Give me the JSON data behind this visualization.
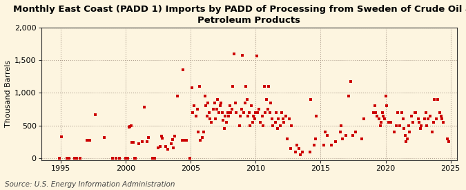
{
  "title": "Monthly East Coast (PADD 1) Imports by PADD of Processing from Sweden of Crude Oil and\nPetroleum Products",
  "ylabel": "Thousand Barrels",
  "source": "Source: U.S. Energy Information Administration",
  "background_color": "#fdf5e0",
  "plot_bg_color": "#fdf5e0",
  "marker_color": "#cc0000",
  "xlim": [
    1993.5,
    2025.5
  ],
  "ylim": [
    -30,
    2000
  ],
  "yticks": [
    0,
    500,
    1000,
    1500,
    2000
  ],
  "xticks": [
    1995,
    2000,
    2005,
    2010,
    2015,
    2020,
    2025
  ],
  "title_fontsize": 9.5,
  "ylabel_fontsize": 8,
  "source_fontsize": 7.5,
  "data_points": [
    [
      1994.917,
      0
    ],
    [
      1995.083,
      325
    ],
    [
      1995.5,
      0
    ],
    [
      1995.667,
      0
    ],
    [
      1996.083,
      0
    ],
    [
      1996.25,
      0
    ],
    [
      1996.5,
      0
    ],
    [
      1997.0,
      280
    ],
    [
      1997.25,
      280
    ],
    [
      1997.667,
      670
    ],
    [
      1998.333,
      320
    ],
    [
      1999.0,
      0
    ],
    [
      1999.25,
      0
    ],
    [
      1999.5,
      0
    ],
    [
      2000.0,
      0
    ],
    [
      2000.083,
      0
    ],
    [
      2000.167,
      0
    ],
    [
      2000.25,
      480
    ],
    [
      2000.333,
      490
    ],
    [
      2000.417,
      500
    ],
    [
      2000.5,
      240
    ],
    [
      2000.583,
      240
    ],
    [
      2000.667,
      0
    ],
    [
      2000.75,
      0
    ],
    [
      2001.0,
      220
    ],
    [
      2001.25,
      250
    ],
    [
      2001.417,
      780
    ],
    [
      2001.667,
      250
    ],
    [
      2001.75,
      320
    ],
    [
      2002.083,
      0
    ],
    [
      2002.25,
      0
    ],
    [
      2002.5,
      160
    ],
    [
      2002.667,
      180
    ],
    [
      2002.75,
      340
    ],
    [
      2002.833,
      310
    ],
    [
      2003.083,
      180
    ],
    [
      2003.25,
      140
    ],
    [
      2003.5,
      220
    ],
    [
      2003.583,
      290
    ],
    [
      2003.667,
      160
    ],
    [
      2003.75,
      340
    ],
    [
      2004.0,
      950
    ],
    [
      2004.333,
      280
    ],
    [
      2004.417,
      1350
    ],
    [
      2004.583,
      280
    ],
    [
      2004.667,
      280
    ],
    [
      2004.917,
      0
    ],
    [
      2005.083,
      1080
    ],
    [
      2005.167,
      700
    ],
    [
      2005.25,
      800
    ],
    [
      2005.417,
      650
    ],
    [
      2005.5,
      750
    ],
    [
      2005.583,
      400
    ],
    [
      2005.667,
      1100
    ],
    [
      2005.75,
      280
    ],
    [
      2005.917,
      320
    ],
    [
      2006.0,
      400
    ],
    [
      2006.083,
      950
    ],
    [
      2006.167,
      800
    ],
    [
      2006.25,
      650
    ],
    [
      2006.333,
      850
    ],
    [
      2006.417,
      700
    ],
    [
      2006.5,
      600
    ],
    [
      2006.583,
      550
    ],
    [
      2006.75,
      750
    ],
    [
      2006.833,
      850
    ],
    [
      2006.917,
      600
    ],
    [
      2007.0,
      750
    ],
    [
      2007.083,
      900
    ],
    [
      2007.167,
      700
    ],
    [
      2007.25,
      800
    ],
    [
      2007.333,
      850
    ],
    [
      2007.417,
      700
    ],
    [
      2007.5,
      580
    ],
    [
      2007.583,
      450
    ],
    [
      2007.667,
      650
    ],
    [
      2007.75,
      550
    ],
    [
      2007.833,
      700
    ],
    [
      2007.917,
      650
    ],
    [
      2008.0,
      800
    ],
    [
      2008.083,
      700
    ],
    [
      2008.167,
      750
    ],
    [
      2008.25,
      1100
    ],
    [
      2008.333,
      1600
    ],
    [
      2008.417,
      850
    ],
    [
      2008.5,
      700
    ],
    [
      2008.75,
      500
    ],
    [
      2008.833,
      650
    ],
    [
      2008.917,
      750
    ],
    [
      2009.0,
      1580
    ],
    [
      2009.083,
      700
    ],
    [
      2009.167,
      850
    ],
    [
      2009.25,
      1100
    ],
    [
      2009.333,
      900
    ],
    [
      2009.417,
      650
    ],
    [
      2009.5,
      700
    ],
    [
      2009.583,
      500
    ],
    [
      2009.667,
      800
    ],
    [
      2009.75,
      550
    ],
    [
      2009.833,
      650
    ],
    [
      2009.917,
      600
    ],
    [
      2010.0,
      700
    ],
    [
      2010.083,
      1560
    ],
    [
      2010.167,
      700
    ],
    [
      2010.25,
      750
    ],
    [
      2010.333,
      550
    ],
    [
      2010.5,
      650
    ],
    [
      2010.583,
      500
    ],
    [
      2010.667,
      1100
    ],
    [
      2010.75,
      700
    ],
    [
      2010.833,
      900
    ],
    [
      2010.917,
      750
    ],
    [
      2011.0,
      1100
    ],
    [
      2011.083,
      700
    ],
    [
      2011.167,
      850
    ],
    [
      2011.25,
      600
    ],
    [
      2011.333,
      500
    ],
    [
      2011.5,
      550
    ],
    [
      2011.583,
      700
    ],
    [
      2011.667,
      450
    ],
    [
      2011.75,
      600
    ],
    [
      2011.917,
      500
    ],
    [
      2012.0,
      700
    ],
    [
      2012.083,
      600
    ],
    [
      2012.167,
      550
    ],
    [
      2012.333,
      650
    ],
    [
      2012.417,
      300
    ],
    [
      2012.583,
      600
    ],
    [
      2012.667,
      150
    ],
    [
      2012.75,
      500
    ],
    [
      2013.083,
      100
    ],
    [
      2013.167,
      200
    ],
    [
      2013.333,
      150
    ],
    [
      2013.417,
      50
    ],
    [
      2013.583,
      100
    ],
    [
      2014.167,
      100
    ],
    [
      2014.25,
      900
    ],
    [
      2014.5,
      200
    ],
    [
      2014.583,
      300
    ],
    [
      2014.667,
      650
    ],
    [
      2015.25,
      200
    ],
    [
      2015.333,
      400
    ],
    [
      2015.5,
      350
    ],
    [
      2015.833,
      200
    ],
    [
      2016.167,
      250
    ],
    [
      2016.5,
      400
    ],
    [
      2016.583,
      500
    ],
    [
      2016.667,
      300
    ],
    [
      2016.917,
      350
    ],
    [
      2017.167,
      950
    ],
    [
      2017.333,
      1170
    ],
    [
      2017.5,
      350
    ],
    [
      2017.667,
      400
    ],
    [
      2018.167,
      300
    ],
    [
      2018.333,
      600
    ],
    [
      2019.083,
      700
    ],
    [
      2019.167,
      800
    ],
    [
      2019.25,
      700
    ],
    [
      2019.333,
      650
    ],
    [
      2019.5,
      600
    ],
    [
      2019.583,
      500
    ],
    [
      2019.667,
      550
    ],
    [
      2019.75,
      700
    ],
    [
      2019.833,
      650
    ],
    [
      2019.917,
      600
    ],
    [
      2020.0,
      950
    ],
    [
      2020.083,
      800
    ],
    [
      2020.25,
      550
    ],
    [
      2020.417,
      550
    ],
    [
      2020.667,
      400
    ],
    [
      2020.833,
      500
    ],
    [
      2020.917,
      700
    ],
    [
      2021.083,
      500
    ],
    [
      2021.25,
      700
    ],
    [
      2021.333,
      600
    ],
    [
      2021.417,
      450
    ],
    [
      2021.5,
      350
    ],
    [
      2021.583,
      250
    ],
    [
      2021.667,
      300
    ],
    [
      2021.75,
      500
    ],
    [
      2021.833,
      400
    ],
    [
      2022.0,
      650
    ],
    [
      2022.083,
      550
    ],
    [
      2022.25,
      700
    ],
    [
      2022.333,
      700
    ],
    [
      2022.5,
      600
    ],
    [
      2022.583,
      550
    ],
    [
      2022.667,
      450
    ],
    [
      2022.75,
      500
    ],
    [
      2023.0,
      600
    ],
    [
      2023.083,
      700
    ],
    [
      2023.167,
      500
    ],
    [
      2023.25,
      600
    ],
    [
      2023.417,
      650
    ],
    [
      2023.583,
      400
    ],
    [
      2023.667,
      550
    ],
    [
      2023.75,
      900
    ],
    [
      2023.917,
      600
    ],
    [
      2024.0,
      900
    ],
    [
      2024.167,
      700
    ],
    [
      2024.25,
      650
    ],
    [
      2024.333,
      600
    ],
    [
      2024.417,
      550
    ],
    [
      2024.75,
      300
    ],
    [
      2024.833,
      250
    ]
  ]
}
